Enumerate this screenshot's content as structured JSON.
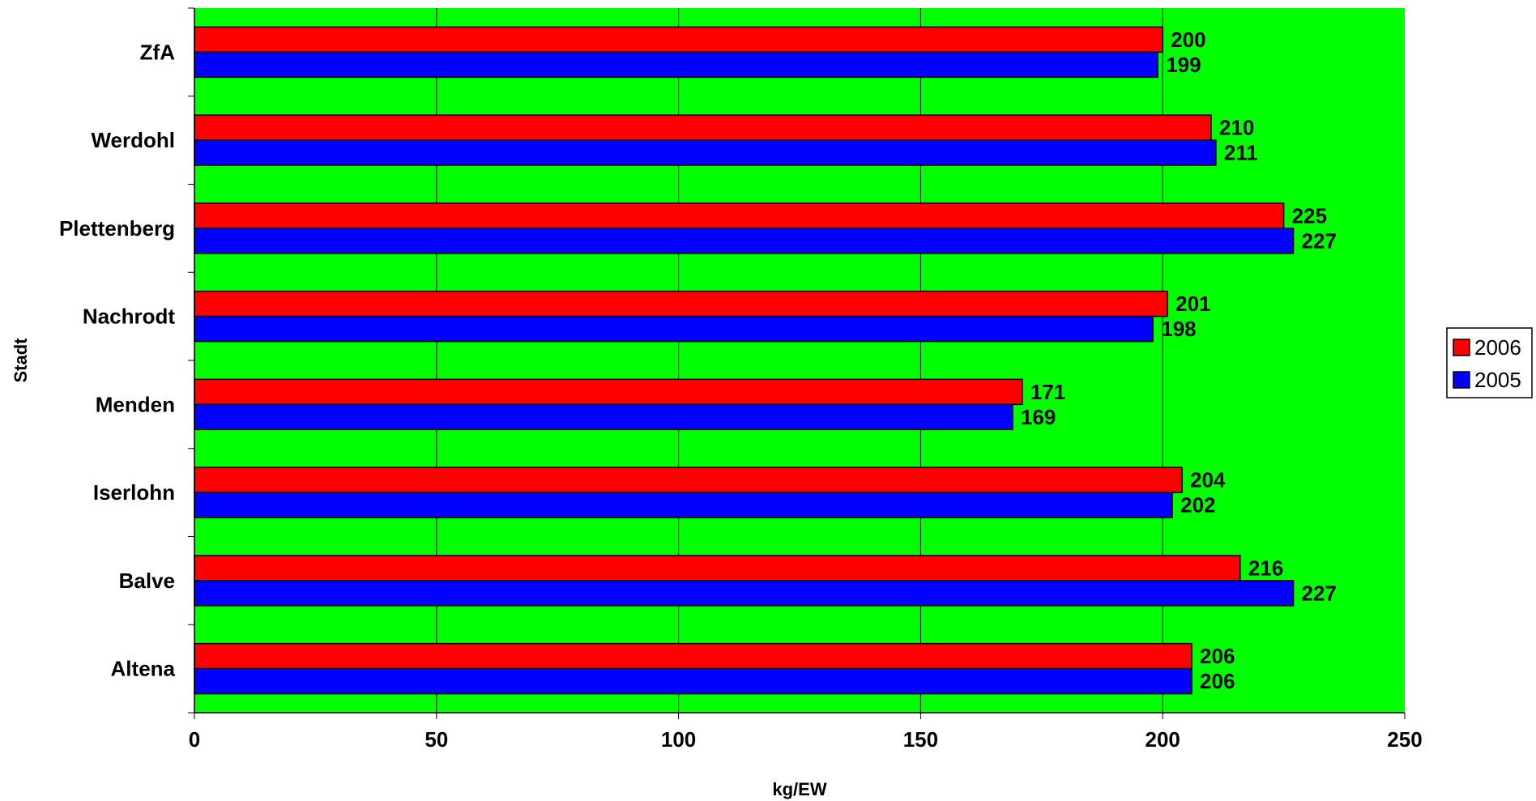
{
  "chart_data": {
    "type": "bar",
    "orientation": "horizontal",
    "categories": [
      "Altena",
      "Balve",
      "Iserlohn",
      "Menden",
      "Nachrodt",
      "Plettenberg",
      "Werdohl",
      "ZfA"
    ],
    "series": [
      {
        "name": "2006",
        "values": [
          206,
          216,
          204,
          171,
          201,
          225,
          210,
          200
        ],
        "color": "#ff0000"
      },
      {
        "name": "2005",
        "values": [
          206,
          227,
          202,
          169,
          198,
          227,
          211,
          199
        ],
        "color": "#0000ff"
      }
    ],
    "xlabel": "kg/EW",
    "ylabel": "Stadt",
    "xlim": [
      0,
      250
    ],
    "xticks": [
      "0",
      "50",
      "100",
      "150",
      "200",
      "250"
    ],
    "grid": "vertical",
    "legend_position": "right",
    "plot_background": "#00ff00",
    "data_labels": true
  }
}
